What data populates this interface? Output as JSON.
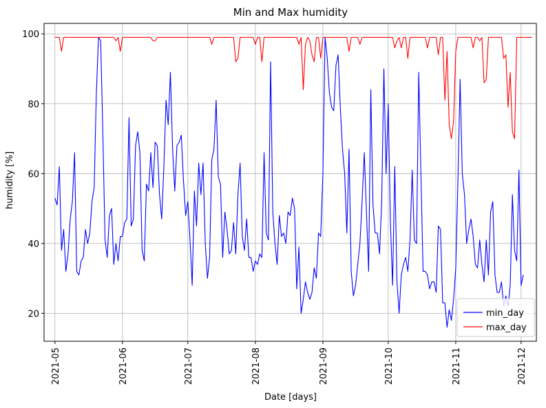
{
  "chart_data": {
    "type": "line",
    "title": "Min and Max humidity",
    "xlabel": "Date [days]",
    "ylabel": "humidity [%]",
    "x_start": "2021-05-01",
    "x_end": "2021-12-02",
    "x_domain": [
      "2021-04-26",
      "2021-12-08"
    ],
    "x_tick_labels": [
      "2021-05",
      "2021-06",
      "2021-07",
      "2021-08",
      "2021-09",
      "2021-10",
      "2021-11",
      "2021-12"
    ],
    "x_tick_dates": [
      "2021-05-01",
      "2021-06-01",
      "2021-07-01",
      "2021-08-01",
      "2021-09-01",
      "2021-10-01",
      "2021-11-01",
      "2021-12-01"
    ],
    "y_tick_labels": [
      "20",
      "40",
      "60",
      "80",
      "100"
    ],
    "y_ticks": [
      20,
      40,
      60,
      80,
      100
    ],
    "ylim": [
      12,
      103
    ],
    "grid": true,
    "legend_position": "lower right",
    "series": [
      {
        "name": "min_day",
        "color": "#0000ff",
        "values": [
          53,
          51,
          62,
          38,
          44,
          32,
          37,
          47,
          52,
          66,
          32,
          31,
          35,
          36,
          44,
          40,
          43,
          52,
          56,
          83,
          99,
          98,
          71,
          41,
          36,
          48,
          50,
          34,
          40,
          35,
          42,
          42,
          46,
          47,
          76,
          45,
          47,
          68,
          72,
          66,
          38,
          35,
          57,
          55,
          66,
          56,
          69,
          68,
          54,
          47,
          62,
          81,
          74,
          89,
          67,
          55,
          68,
          69,
          71,
          58,
          48,
          52,
          41,
          28,
          55,
          45,
          63,
          54,
          63,
          40,
          30,
          36,
          64,
          67,
          81,
          59,
          57,
          36,
          49,
          44,
          37,
          38,
          46,
          37,
          54,
          63,
          42,
          38,
          47,
          36,
          36,
          32,
          35,
          34,
          37,
          36,
          66,
          43,
          41,
          92,
          49,
          40,
          34,
          48,
          42,
          43,
          40,
          49,
          48,
          53,
          50,
          27,
          39,
          20,
          24,
          29,
          26,
          24,
          26,
          33,
          30,
          43,
          42,
          60,
          99,
          93,
          83,
          79,
          78,
          91,
          94,
          79,
          67,
          60,
          43,
          67,
          32,
          25,
          28,
          34,
          40,
          52,
          66,
          49,
          32,
          84,
          51,
          43,
          43,
          37,
          52,
          90,
          60,
          80,
          46,
          28,
          62,
          29,
          20,
          31,
          34,
          36,
          32,
          41,
          61,
          41,
          40,
          89,
          60,
          32,
          32,
          31,
          27,
          29,
          29,
          26,
          45,
          44,
          23,
          23,
          16,
          21,
          18,
          24,
          33,
          58,
          87,
          60,
          54,
          40,
          44,
          47,
          42,
          34,
          33,
          41,
          34,
          29,
          41,
          31,
          49,
          52,
          31,
          26,
          26,
          29,
          22,
          25,
          22,
          28,
          54,
          38,
          35,
          61,
          28,
          31
        ]
      },
      {
        "name": "max_day",
        "color": "#ff0000",
        "values": [
          99,
          99,
          99,
          95,
          99,
          99,
          99,
          99,
          99,
          99,
          99,
          99,
          99,
          99,
          99,
          99,
          99,
          99,
          99,
          99,
          99,
          99,
          99,
          99,
          99,
          99,
          99,
          99,
          98,
          99,
          95,
          99,
          99,
          99,
          99,
          99,
          99,
          99,
          99,
          99,
          99,
          99,
          99,
          99,
          99,
          98,
          98,
          99,
          99,
          99,
          99,
          99,
          99,
          99,
          99,
          99,
          99,
          99,
          99,
          99,
          99,
          99,
          99,
          99,
          99,
          99,
          99,
          99,
          99,
          99,
          99,
          99,
          97,
          99,
          99,
          99,
          99,
          99,
          99,
          99,
          99,
          99,
          99,
          92,
          93,
          99,
          99,
          99,
          99,
          99,
          99,
          99,
          97,
          99,
          99,
          92,
          99,
          99,
          99,
          99,
          99,
          99,
          99,
          99,
          99,
          99,
          99,
          99,
          99,
          99,
          99,
          99,
          97,
          99,
          84,
          97,
          99,
          98,
          94,
          92,
          99,
          99,
          93,
          99,
          99,
          99,
          99,
          99,
          99,
          99,
          99,
          99,
          99,
          99,
          99,
          95,
          99,
          99,
          99,
          99,
          97,
          99,
          99,
          99,
          99,
          99,
          99,
          99,
          99,
          99,
          99,
          99,
          99,
          99,
          99,
          99,
          96,
          98,
          99,
          96,
          99,
          99,
          93,
          99,
          99,
          99,
          99,
          99,
          99,
          99,
          99,
          96,
          99,
          99,
          99,
          99,
          94,
          99,
          99,
          81,
          95,
          74,
          70,
          75,
          95,
          99,
          99,
          99,
          99,
          99,
          99,
          99,
          96,
          99,
          99,
          98,
          99,
          86,
          87,
          99,
          99,
          99,
          99,
          99,
          99,
          99,
          93,
          94,
          79,
          89,
          72,
          70,
          99,
          99,
          99,
          99,
          99,
          99,
          99,
          99
        ]
      }
    ]
  }
}
